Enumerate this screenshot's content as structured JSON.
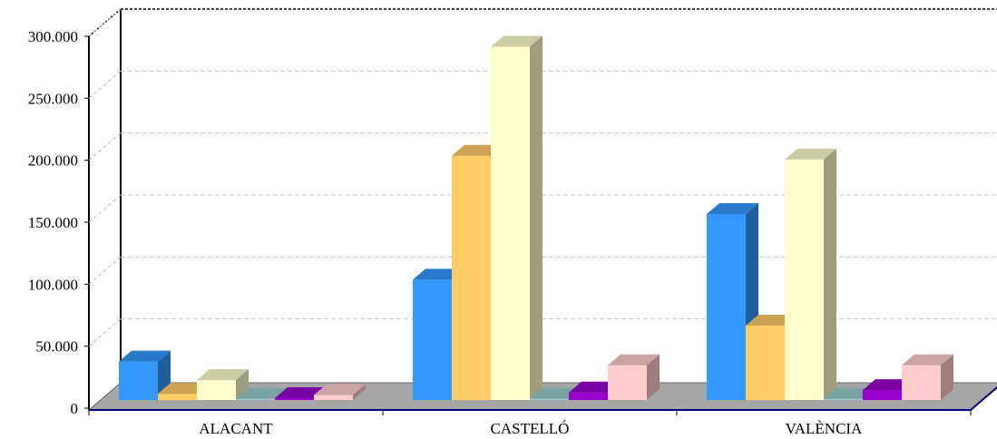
{
  "chart_data": {
    "type": "bar",
    "style": "3d-clustered-column",
    "title": "",
    "xlabel": "",
    "ylabel": "",
    "categories": [
      "ALACANT",
      "CASTELLÓ",
      "VALÈNCIA"
    ],
    "ylim": [
      0,
      300000
    ],
    "y_ticks": [
      {
        "value": 0,
        "label": "0"
      },
      {
        "value": 50000,
        "label": "50.000"
      },
      {
        "value": 100000,
        "label": "100.000"
      },
      {
        "value": 150000,
        "label": "150.000"
      },
      {
        "value": 200000,
        "label": "200.000"
      },
      {
        "value": 250000,
        "label": "250.000"
      },
      {
        "value": 300000,
        "label": "300.000"
      }
    ],
    "grid": true,
    "legend": "none",
    "series": [
      {
        "color": "#3399ff",
        "values": [
          31000,
          97000,
          150000
        ]
      },
      {
        "color": "#ffcc66",
        "values": [
          5000,
          197000,
          60000
        ]
      },
      {
        "color": "#ffffcc",
        "values": [
          16000,
          285000,
          194000
        ]
      },
      {
        "color": "#99cccc",
        "values": [
          1000,
          1000,
          1000
        ]
      },
      {
        "color": "#9900cc",
        "values": [
          1500,
          6000,
          8000
        ]
      },
      {
        "color": "#ffcccc",
        "values": [
          4000,
          28000,
          28000
        ]
      }
    ]
  }
}
